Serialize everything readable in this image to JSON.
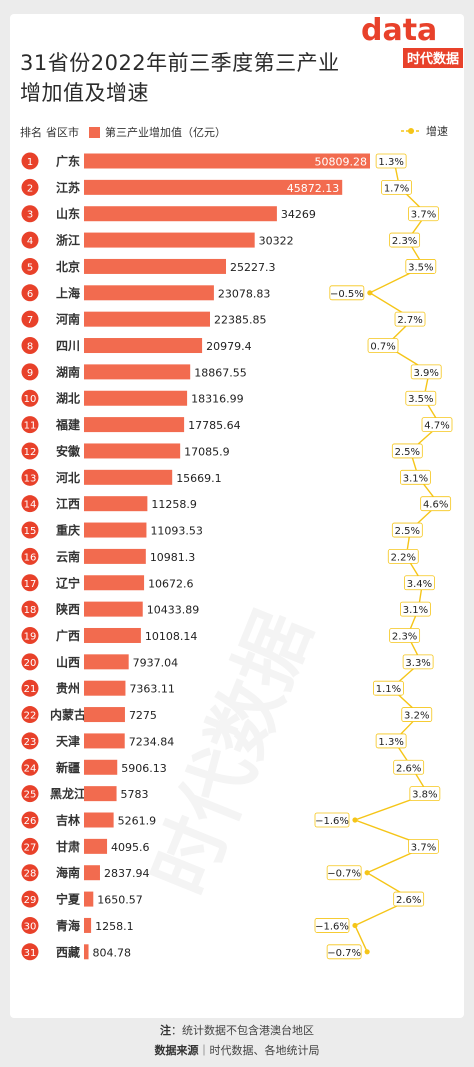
{
  "title": {
    "line1": "31省份2022年前三季度第三产业",
    "line2": "增加值及增速"
  },
  "logo": {
    "text": "时代数据",
    "mark": "data"
  },
  "header": {
    "rank": "排名",
    "region": "省区市",
    "bar_label": "第三产业增加值（亿元）",
    "line_label": "增速"
  },
  "footer": {
    "note_label": "注",
    "note_text": "：统计数据不包含港澳台地区",
    "source_label": "数据来源",
    "source_text": "｜时代数据、各地统计局"
  },
  "watermark": "时代数据",
  "colors": {
    "bar": "#f26b4f",
    "line": "#f5c518",
    "badge": "#e8412a",
    "text": "#333333"
  },
  "chart_data": {
    "type": "bar",
    "title": "31省份2022年前三季度第三产业增加值及增速",
    "orientation": "horizontal",
    "categories": [
      "广东",
      "江苏",
      "山东",
      "浙江",
      "北京",
      "上海",
      "河南",
      "四川",
      "湖南",
      "湖北",
      "福建",
      "安徽",
      "河北",
      "江西",
      "重庆",
      "云南",
      "辽宁",
      "陕西",
      "广西",
      "山西",
      "贵州",
      "内蒙古",
      "天津",
      "新疆",
      "黑龙江",
      "吉林",
      "甘肃",
      "海南",
      "宁夏",
      "青海",
      "西藏"
    ],
    "ranks": [
      "1",
      "2",
      "3",
      "4",
      "5",
      "6",
      "7",
      "8",
      "9",
      "10",
      "11",
      "12",
      "13",
      "14",
      "15",
      "16",
      "17",
      "18",
      "19",
      "20",
      "21",
      "22",
      "23",
      "24",
      "25",
      "26",
      "27",
      "28",
      "29",
      "30",
      "31"
    ],
    "series": [
      {
        "name": "第三产业增加值（亿元）",
        "type": "bar",
        "values": [
          50809.28,
          45872.13,
          34269,
          30322,
          25227.3,
          23078.83,
          22385.85,
          20979.4,
          18867.55,
          18316.99,
          17785.64,
          17085.9,
          15669.1,
          11258.9,
          11093.53,
          10981.3,
          10672.6,
          10433.89,
          10108.14,
          7937.04,
          7363.11,
          7275,
          7234.84,
          5906.13,
          5783,
          5261.9,
          4095.6,
          2837.94,
          1650.57,
          1258.1,
          804.78
        ],
        "labels": [
          "50809.28",
          "45872.13",
          "34269",
          "30322",
          "25227.3",
          "23078.83",
          "22385.85",
          "20979.4",
          "18867.55",
          "18316.99",
          "17785.64",
          "17085.9",
          "15669.1",
          "11258.9",
          "11093.53",
          "10981.3",
          "10672.6",
          "10433.89",
          "10108.14",
          "7937.04",
          "7363.11",
          "7275",
          "7234.84",
          "5906.13",
          "5783",
          "5261.9",
          "4095.6",
          "2837.94",
          "1650.57",
          "1258.1",
          "804.78"
        ]
      },
      {
        "name": "增速",
        "type": "line",
        "values": [
          1.3,
          1.7,
          3.7,
          2.3,
          3.5,
          -0.5,
          2.7,
          0.7,
          3.9,
          3.5,
          4.7,
          2.5,
          3.1,
          4.6,
          2.5,
          2.2,
          3.4,
          3.1,
          2.3,
          3.3,
          1.1,
          3.2,
          1.3,
          2.6,
          3.8,
          -1.6,
          3.7,
          -0.7,
          2.6,
          -1.6,
          -0.7
        ],
        "labels": [
          "1.3%",
          "1.7%",
          "3.7%",
          "2.3%",
          "3.5%",
          "−0.5%",
          "2.7%",
          "0.7%",
          "3.9%",
          "3.5%",
          "4.7%",
          "2.5%",
          "3.1%",
          "4.6%",
          "2.5%",
          "2.2%",
          "3.4%",
          "3.1%",
          "2.3%",
          "3.3%",
          "1.1%",
          "3.2%",
          "1.3%",
          "2.6%",
          "3.8%",
          "−1.6%",
          "3.7%",
          "−0.7%",
          "2.6%",
          "−1.6%",
          "−0.7%"
        ]
      }
    ],
    "legend": "top",
    "grid": false
  }
}
